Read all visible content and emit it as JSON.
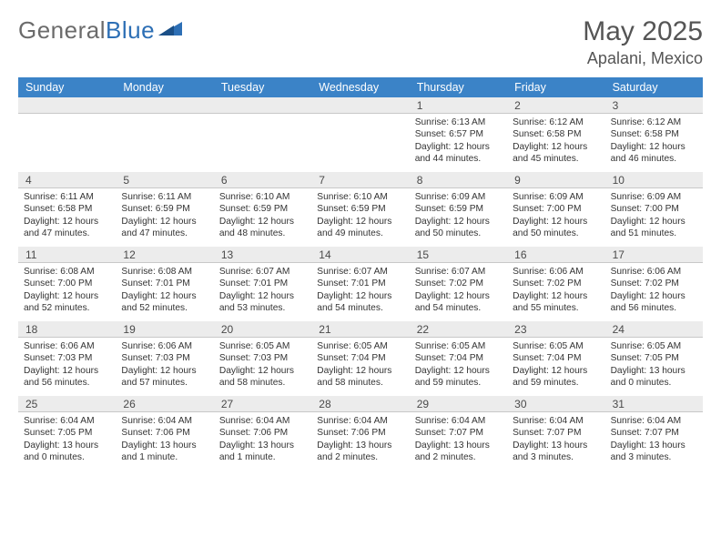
{
  "logo": {
    "text1": "General",
    "text2": "Blue"
  },
  "title": "May 2025",
  "location": "Apalani, Mexico",
  "colors": {
    "header_bg": "#3b83c7",
    "header_fg": "#ffffff",
    "daynum_bg": "#ececec",
    "border": "#c8c8c8",
    "text": "#333333",
    "title_color": "#555555",
    "logo_gray": "#6b6b6b",
    "logo_blue": "#2d6fb5"
  },
  "days_of_week": [
    "Sunday",
    "Monday",
    "Tuesday",
    "Wednesday",
    "Thursday",
    "Friday",
    "Saturday"
  ],
  "weeks": [
    [
      null,
      null,
      null,
      null,
      {
        "n": "1",
        "sr": "6:13 AM",
        "ss": "6:57 PM",
        "dl": "12 hours and 44 minutes."
      },
      {
        "n": "2",
        "sr": "6:12 AM",
        "ss": "6:58 PM",
        "dl": "12 hours and 45 minutes."
      },
      {
        "n": "3",
        "sr": "6:12 AM",
        "ss": "6:58 PM",
        "dl": "12 hours and 46 minutes."
      }
    ],
    [
      {
        "n": "4",
        "sr": "6:11 AM",
        "ss": "6:58 PM",
        "dl": "12 hours and 47 minutes."
      },
      {
        "n": "5",
        "sr": "6:11 AM",
        "ss": "6:59 PM",
        "dl": "12 hours and 47 minutes."
      },
      {
        "n": "6",
        "sr": "6:10 AM",
        "ss": "6:59 PM",
        "dl": "12 hours and 48 minutes."
      },
      {
        "n": "7",
        "sr": "6:10 AM",
        "ss": "6:59 PM",
        "dl": "12 hours and 49 minutes."
      },
      {
        "n": "8",
        "sr": "6:09 AM",
        "ss": "6:59 PM",
        "dl": "12 hours and 50 minutes."
      },
      {
        "n": "9",
        "sr": "6:09 AM",
        "ss": "7:00 PM",
        "dl": "12 hours and 50 minutes."
      },
      {
        "n": "10",
        "sr": "6:09 AM",
        "ss": "7:00 PM",
        "dl": "12 hours and 51 minutes."
      }
    ],
    [
      {
        "n": "11",
        "sr": "6:08 AM",
        "ss": "7:00 PM",
        "dl": "12 hours and 52 minutes."
      },
      {
        "n": "12",
        "sr": "6:08 AM",
        "ss": "7:01 PM",
        "dl": "12 hours and 52 minutes."
      },
      {
        "n": "13",
        "sr": "6:07 AM",
        "ss": "7:01 PM",
        "dl": "12 hours and 53 minutes."
      },
      {
        "n": "14",
        "sr": "6:07 AM",
        "ss": "7:01 PM",
        "dl": "12 hours and 54 minutes."
      },
      {
        "n": "15",
        "sr": "6:07 AM",
        "ss": "7:02 PM",
        "dl": "12 hours and 54 minutes."
      },
      {
        "n": "16",
        "sr": "6:06 AM",
        "ss": "7:02 PM",
        "dl": "12 hours and 55 minutes."
      },
      {
        "n": "17",
        "sr": "6:06 AM",
        "ss": "7:02 PM",
        "dl": "12 hours and 56 minutes."
      }
    ],
    [
      {
        "n": "18",
        "sr": "6:06 AM",
        "ss": "7:03 PM",
        "dl": "12 hours and 56 minutes."
      },
      {
        "n": "19",
        "sr": "6:06 AM",
        "ss": "7:03 PM",
        "dl": "12 hours and 57 minutes."
      },
      {
        "n": "20",
        "sr": "6:05 AM",
        "ss": "7:03 PM",
        "dl": "12 hours and 58 minutes."
      },
      {
        "n": "21",
        "sr": "6:05 AM",
        "ss": "7:04 PM",
        "dl": "12 hours and 58 minutes."
      },
      {
        "n": "22",
        "sr": "6:05 AM",
        "ss": "7:04 PM",
        "dl": "12 hours and 59 minutes."
      },
      {
        "n": "23",
        "sr": "6:05 AM",
        "ss": "7:04 PM",
        "dl": "12 hours and 59 minutes."
      },
      {
        "n": "24",
        "sr": "6:05 AM",
        "ss": "7:05 PM",
        "dl": "13 hours and 0 minutes."
      }
    ],
    [
      {
        "n": "25",
        "sr": "6:04 AM",
        "ss": "7:05 PM",
        "dl": "13 hours and 0 minutes."
      },
      {
        "n": "26",
        "sr": "6:04 AM",
        "ss": "7:06 PM",
        "dl": "13 hours and 1 minute."
      },
      {
        "n": "27",
        "sr": "6:04 AM",
        "ss": "7:06 PM",
        "dl": "13 hours and 1 minute."
      },
      {
        "n": "28",
        "sr": "6:04 AM",
        "ss": "7:06 PM",
        "dl": "13 hours and 2 minutes."
      },
      {
        "n": "29",
        "sr": "6:04 AM",
        "ss": "7:07 PM",
        "dl": "13 hours and 2 minutes."
      },
      {
        "n": "30",
        "sr": "6:04 AM",
        "ss": "7:07 PM",
        "dl": "13 hours and 3 minutes."
      },
      {
        "n": "31",
        "sr": "6:04 AM",
        "ss": "7:07 PM",
        "dl": "13 hours and 3 minutes."
      }
    ]
  ],
  "labels": {
    "sunrise": "Sunrise:",
    "sunset": "Sunset:",
    "daylight": "Daylight:"
  }
}
